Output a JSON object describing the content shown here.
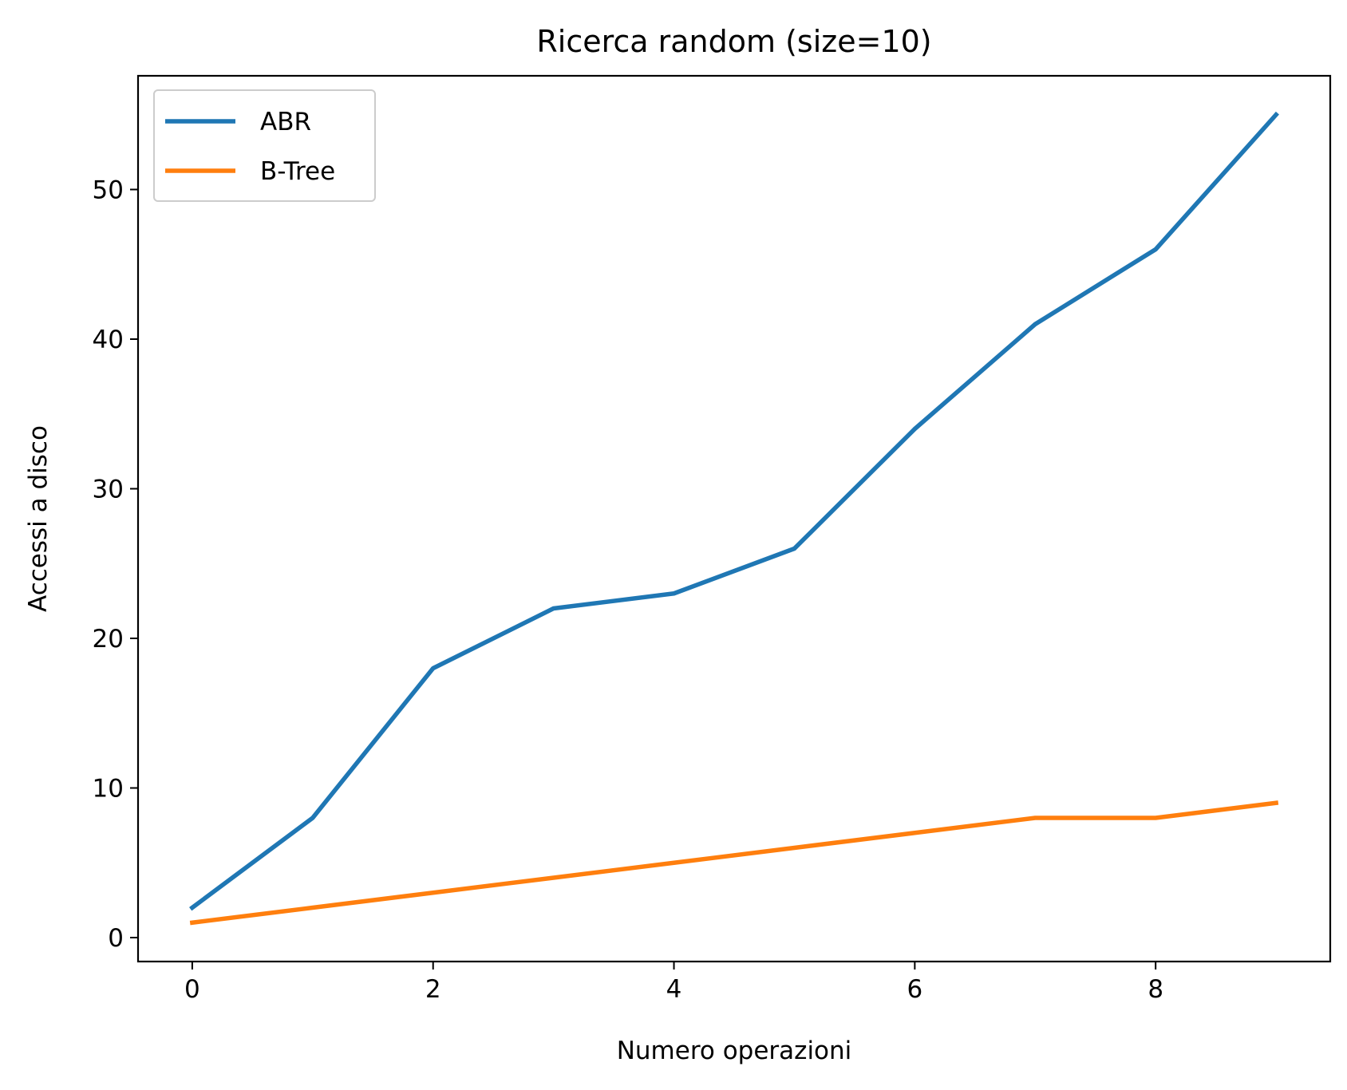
{
  "chart_data": {
    "type": "line",
    "title": "Ricerca random (size=10)",
    "xlabel": "Numero operazioni",
    "ylabel": "Accessi a disco",
    "x": [
      0,
      1,
      2,
      3,
      4,
      5,
      6,
      7,
      8,
      9
    ],
    "series": [
      {
        "name": "ABR",
        "color": "#1f77b4",
        "values": [
          2,
          8,
          18,
          22,
          23,
          26,
          34,
          41,
          46,
          55
        ]
      },
      {
        "name": "B-Tree",
        "color": "#ff7f0e",
        "values": [
          1,
          2,
          3,
          4,
          5,
          6,
          7,
          8,
          8,
          9
        ]
      }
    ],
    "xlim": [
      -0.45,
      9.45
    ],
    "ylim": [
      -1.6,
      57.6
    ],
    "xticks": [
      0,
      2,
      4,
      6,
      8
    ],
    "yticks": [
      0,
      10,
      20,
      30,
      40,
      50
    ],
    "grid": false,
    "legend_position": "top-left"
  }
}
